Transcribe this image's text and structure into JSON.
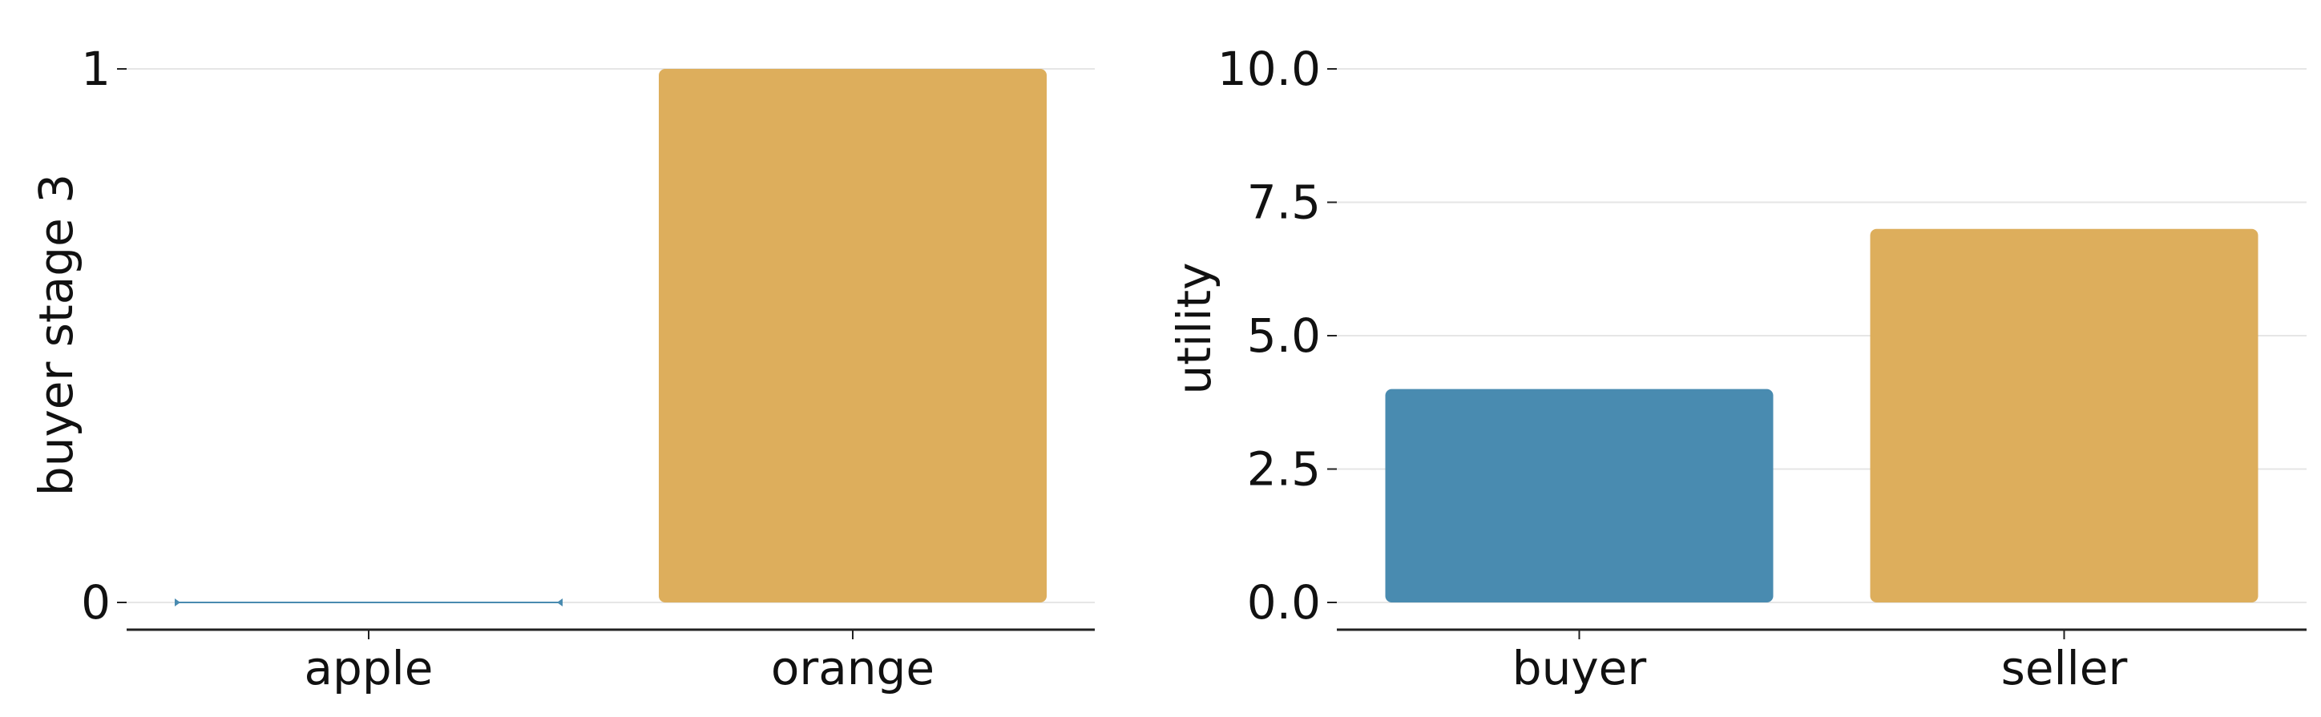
{
  "colors": {
    "blue": "#498bb0",
    "gold": "#ddae5c"
  },
  "chart_data": [
    {
      "type": "bar",
      "title": "",
      "xlabel": "",
      "ylabel": "buyer stage 3",
      "categories": [
        "apple",
        "orange"
      ],
      "values": [
        0,
        1
      ],
      "bar_colors": [
        "#498bb0",
        "#ddae5c"
      ],
      "yticks": [
        0,
        1
      ],
      "ytick_labels": [
        "0",
        "1"
      ],
      "ylim": [
        0,
        1
      ],
      "grid": "horizontal",
      "legend": "none"
    },
    {
      "type": "bar",
      "title": "",
      "xlabel": "",
      "ylabel": "utility",
      "categories": [
        "buyer",
        "seller"
      ],
      "values": [
        4,
        7
      ],
      "bar_colors": [
        "#498bb0",
        "#ddae5c"
      ],
      "yticks": [
        0,
        2.5,
        5,
        7.5,
        10
      ],
      "ytick_labels": [
        "0.0",
        "2.5",
        "5.0",
        "7.5",
        "10.0"
      ],
      "ylim": [
        0,
        10
      ],
      "grid": "horizontal",
      "legend": "none"
    }
  ]
}
